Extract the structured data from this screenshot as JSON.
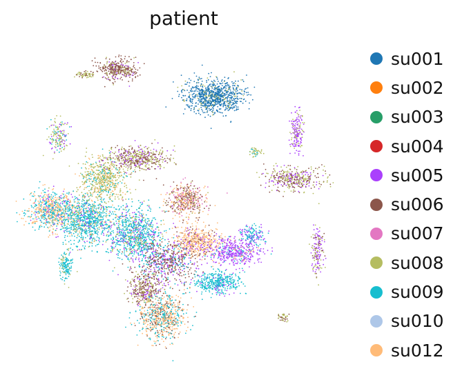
{
  "chart_data": {
    "type": "scatter",
    "title": "patient",
    "xlabel": "",
    "ylabel": "",
    "grid": false,
    "legend_position": "right",
    "series": [
      {
        "name": "su001",
        "color": "#1f77b4"
      },
      {
        "name": "su002",
        "color": "#ff7f0e"
      },
      {
        "name": "su003",
        "color": "#279e68"
      },
      {
        "name": "su004",
        "color": "#d62728"
      },
      {
        "name": "su005",
        "color": "#aa40fc"
      },
      {
        "name": "su006",
        "color": "#8c564b"
      },
      {
        "name": "su007",
        "color": "#e377c2"
      },
      {
        "name": "su008",
        "color": "#b5bd61"
      },
      {
        "name": "su009",
        "color": "#17becf"
      },
      {
        "name": "su010",
        "color": "#aec7e8"
      },
      {
        "name": "su012",
        "color": "#ffbb78"
      }
    ]
  }
}
